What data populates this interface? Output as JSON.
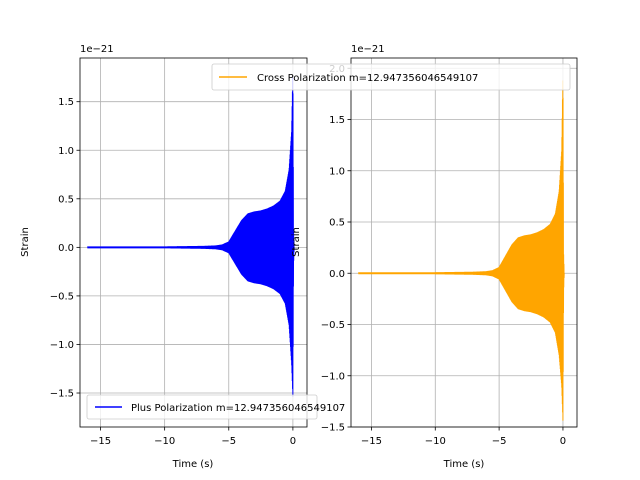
{
  "chart_data": [
    {
      "type": "line",
      "panel": "left",
      "xlabel": "Time (s)",
      "ylabel": "Strain",
      "y_offset_text": "1e−21",
      "xlim": [
        -16.6,
        1.1
      ],
      "ylim": [
        -1.85,
        1.95
      ],
      "xticks": [
        -15,
        -10,
        -5,
        0
      ],
      "xtick_labels": [
        "−15",
        "−10",
        "−5",
        "0"
      ],
      "yticks": [
        -1.5,
        -1.0,
        -0.5,
        0.0,
        0.5,
        1.0,
        1.5
      ],
      "ytick_labels": [
        "−1.5",
        "−1.0",
        "−0.5",
        "0.0",
        "0.5",
        "1.0",
        "1.5"
      ],
      "grid": true,
      "legend_position": "lower-left",
      "series": [
        {
          "name": "Plus Polarization m=12.947356046549107",
          "color": "#0000ff",
          "envelope": {
            "t": [
              -16.0,
              -13.0,
              -10.0,
              -7.0,
              -6.0,
              -5.5,
              -5.0,
              -4.5,
              -4.0,
              -3.5,
              -3.0,
              -2.5,
              -2.0,
              -1.5,
              -1.0,
              -0.6,
              -0.3,
              -0.1,
              0.0,
              0.05,
              0.1
            ],
            "upper": [
              0.01,
              0.01,
              0.01,
              0.015,
              0.02,
              0.03,
              0.06,
              0.17,
              0.28,
              0.35,
              0.37,
              0.38,
              0.4,
              0.43,
              0.48,
              0.58,
              0.8,
              1.2,
              1.85,
              0.2,
              0.0
            ],
            "lower": [
              -0.01,
              -0.01,
              -0.01,
              -0.015,
              -0.02,
              -0.03,
              -0.06,
              -0.17,
              -0.28,
              -0.35,
              -0.37,
              -0.38,
              -0.4,
              -0.43,
              -0.48,
              -0.58,
              -0.8,
              -1.2,
              -1.55,
              -0.2,
              0.0
            ]
          }
        }
      ]
    },
    {
      "type": "line",
      "panel": "right",
      "xlabel": "Time (s)",
      "ylabel": "Strain",
      "y_offset_text": "1e−21",
      "xlim": [
        -16.6,
        1.1
      ],
      "ylim": [
        -1.5,
        2.1
      ],
      "xticks": [
        -15,
        -10,
        -5,
        0
      ],
      "xtick_labels": [
        "−15",
        "−10",
        "−5",
        "0"
      ],
      "yticks": [
        -1.5,
        -1.0,
        -0.5,
        0.0,
        0.5,
        1.0,
        1.5,
        2.0
      ],
      "ytick_labels": [
        "−1.5",
        "−1.0",
        "−0.5",
        "0.0",
        "0.5",
        "1.0",
        "1.5",
        "2.0"
      ],
      "grid": true,
      "legend_position": "top-right",
      "series": [
        {
          "name": "Cross Polarization m=12.947356046549107",
          "color": "#ffa500",
          "envelope": {
            "t": [
              -16.0,
              -13.0,
              -10.0,
              -7.0,
              -6.0,
              -5.5,
              -5.0,
              -4.5,
              -4.0,
              -3.5,
              -3.0,
              -2.5,
              -2.0,
              -1.5,
              -1.0,
              -0.6,
              -0.3,
              -0.1,
              0.0,
              0.05,
              0.1
            ],
            "upper": [
              0.01,
              0.01,
              0.01,
              0.015,
              0.02,
              0.03,
              0.06,
              0.17,
              0.28,
              0.35,
              0.37,
              0.38,
              0.4,
              0.43,
              0.48,
              0.58,
              0.8,
              1.2,
              2.0,
              0.2,
              0.0
            ],
            "lower": [
              -0.01,
              -0.01,
              -0.01,
              -0.015,
              -0.02,
              -0.03,
              -0.06,
              -0.17,
              -0.28,
              -0.35,
              -0.37,
              -0.38,
              -0.4,
              -0.43,
              -0.48,
              -0.58,
              -0.8,
              -1.1,
              -1.45,
              -0.2,
              0.0
            ]
          }
        }
      ]
    }
  ]
}
